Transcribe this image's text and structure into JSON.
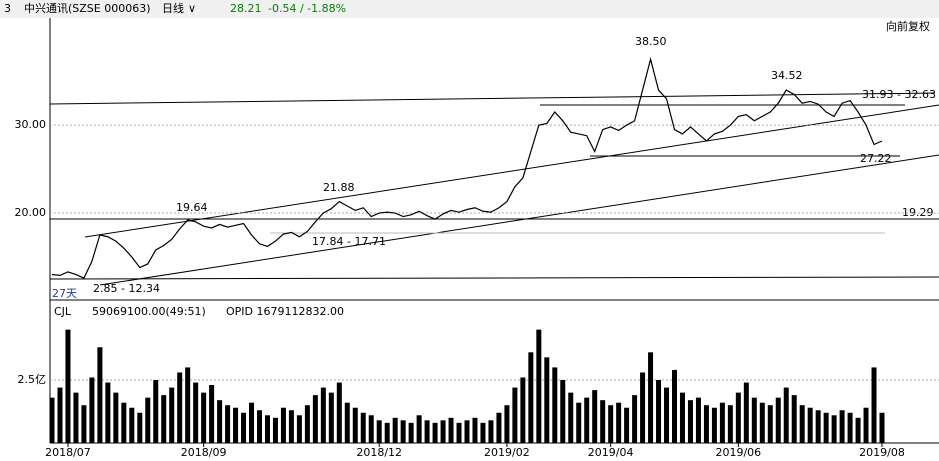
{
  "header": {
    "title": "中兴通讯(SZSE 000063)",
    "index": "3",
    "period": "日线",
    "price": "28.21",
    "change": "-0.54 / -1.88%",
    "adjust": "向前复权"
  },
  "chart_data": [
    {
      "type": "line",
      "color": "#000000",
      "values": [
        13.0,
        12.9,
        13.3,
        13.0,
        12.6,
        14.5,
        17.5,
        17.3,
        16.8,
        16.0,
        15.0,
        13.8,
        14.2,
        15.8,
        16.3,
        17.0,
        18.2,
        19.2,
        19.0,
        18.5,
        18.3,
        18.7,
        18.4,
        18.6,
        18.8,
        17.5,
        16.5,
        16.2,
        16.8,
        17.6,
        17.8,
        17.3,
        17.9,
        19.0,
        20.0,
        20.5,
        21.3,
        20.8,
        20.3,
        20.6,
        19.6,
        20.0,
        20.1,
        20.0,
        19.6,
        19.8,
        20.2,
        19.7,
        19.3,
        19.9,
        20.3,
        20.1,
        20.4,
        20.6,
        20.2,
        20.1,
        20.6,
        21.3,
        23.0,
        24.0,
        27.0,
        30.0,
        30.2,
        31.5,
        30.5,
        29.2,
        29.0,
        28.8,
        27.0,
        29.5,
        29.8,
        29.4,
        30.0,
        30.5,
        34.0,
        37.5,
        34.0,
        33.0,
        29.5,
        29.0,
        29.8,
        29.0,
        28.2,
        29.0,
        29.3,
        30.0,
        31.0,
        31.2,
        30.5,
        31.0,
        31.5,
        32.5,
        34.0,
        33.5,
        32.5,
        32.7,
        32.4,
        31.5,
        31.0,
        32.5,
        32.8,
        31.5,
        30.0,
        27.8,
        28.2
      ],
      "ylim": [
        10.1,
        42.2
      ],
      "yticks": [
        {
          "value": 20,
          "label": "20.00"
        },
        {
          "value": 30,
          "label": "30.00"
        }
      ],
      "annotations": [
        "38.50",
        "34.52",
        "31.93 - 32.63",
        "27.22",
        "19.29",
        "21.88",
        "19.64",
        "17.84 - 17.71",
        "2.85 - 12.34",
        "27天"
      ]
    },
    {
      "type": "bar",
      "color": "#000000",
      "title": "CJL",
      "subtitle": "59069100.00(49:51)",
      "note": "OPID 1679112832.00",
      "values": [
        1.8,
        2.2,
        4.5,
        2.0,
        1.5,
        2.6,
        3.8,
        2.4,
        2.0,
        1.6,
        1.4,
        1.2,
        1.8,
        2.5,
        1.9,
        2.2,
        2.8,
        3.0,
        2.4,
        2.0,
        2.3,
        1.7,
        1.5,
        1.4,
        1.2,
        1.6,
        1.3,
        1.1,
        1.0,
        1.4,
        1.3,
        1.1,
        1.5,
        1.9,
        2.2,
        2.0,
        2.4,
        1.6,
        1.4,
        1.2,
        1.1,
        0.9,
        0.8,
        1.0,
        0.9,
        0.8,
        1.1,
        0.9,
        0.8,
        0.9,
        1.0,
        0.8,
        0.9,
        1.0,
        0.8,
        0.9,
        1.2,
        1.5,
        2.2,
        2.6,
        3.6,
        4.5,
        3.4,
        3.0,
        2.5,
        2.0,
        1.6,
        1.8,
        2.1,
        1.7,
        1.5,
        1.6,
        1.4,
        1.9,
        2.8,
        3.6,
        2.5,
        2.2,
        2.9,
        2.0,
        1.7,
        1.8,
        1.5,
        1.4,
        1.6,
        1.5,
        2.0,
        2.4,
        1.8,
        1.6,
        1.5,
        1.8,
        2.2,
        1.9,
        1.5,
        1.4,
        1.3,
        1.2,
        1.1,
        1.3,
        1.2,
        1.0,
        1.4,
        3.0,
        1.2
      ],
      "ylim": [
        0,
        5.28
      ],
      "yticks": [
        {
          "value": 2.5,
          "label": "2.5亿"
        }
      ],
      "xticks": [
        {
          "value": 2,
          "label": "2018/07"
        },
        {
          "value": 19,
          "label": "2018/09"
        },
        {
          "value": 41,
          "label": "2018/12"
        },
        {
          "value": 57,
          "label": "2019/02"
        },
        {
          "value": 70,
          "label": "2019/04"
        },
        {
          "value": 86,
          "label": "2019/06"
        },
        {
          "value": 104,
          "label": "2019/08"
        }
      ]
    }
  ]
}
